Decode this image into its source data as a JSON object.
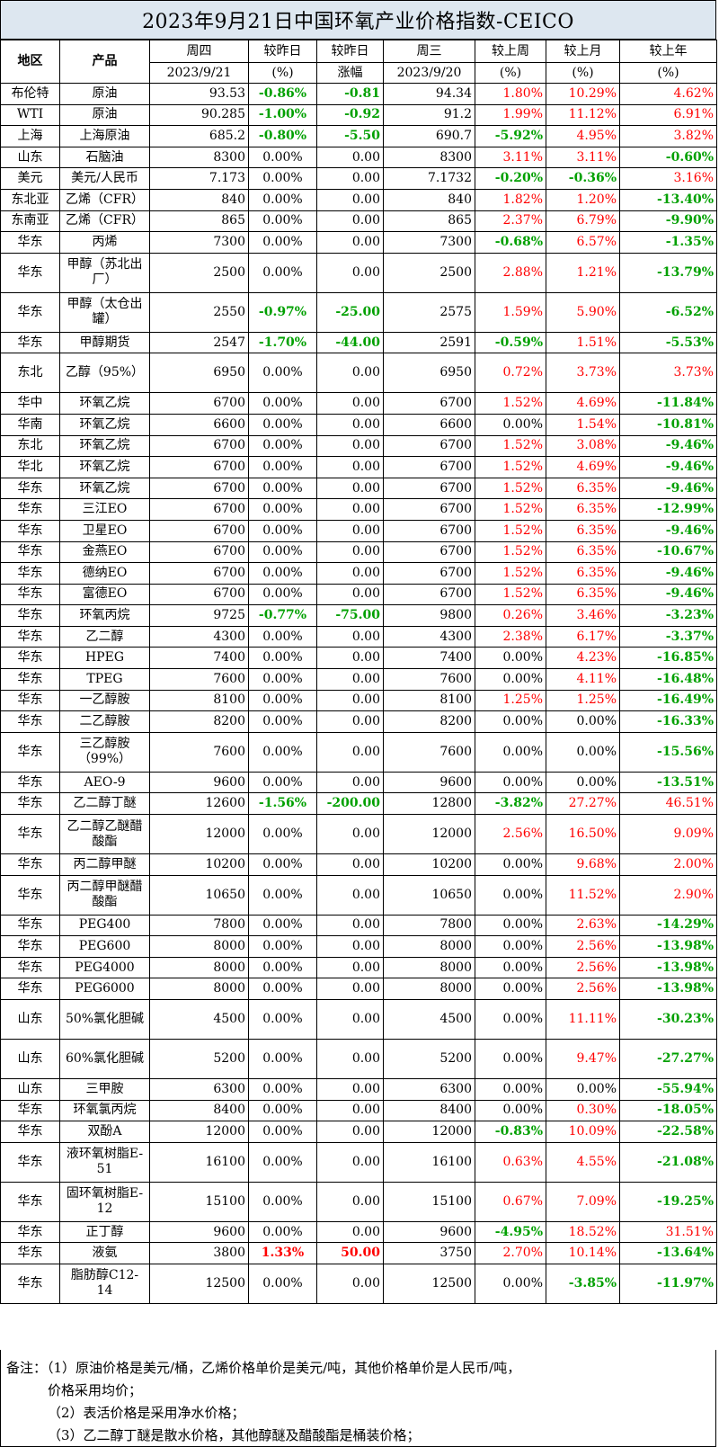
{
  "title": "2023年9月21日中国环氧产业价格指数-CEICO",
  "header": {
    "region": "地区",
    "product": "产品",
    "thu": "周四",
    "thu_date": "2023/9/21",
    "vs_yday_pct_label": "较昨日",
    "vs_yday_pct_unit": "(%)",
    "vs_yday_amt_label": "较昨日",
    "vs_yday_amt_unit": "涨幅",
    "wed": "周三",
    "wed_date": "2023/9/20",
    "vs_week": "较上周",
    "vs_week_unit": "(%)",
    "vs_month": "较上月",
    "vs_month_unit": "(%)",
    "vs_year": "较上年",
    "vs_year_unit": "(%)"
  },
  "rows": [
    {
      "region": "布伦特",
      "product": "原油",
      "thu": "93.53",
      "dpct": "-0.86%",
      "damt": "-0.81",
      "wed": "94.34",
      "wk": "1.80%",
      "mo": "10.29%",
      "yr": "4.62%"
    },
    {
      "region": "WTI",
      "product": "原油",
      "thu": "90.285",
      "dpct": "-1.00%",
      "damt": "-0.92",
      "wed": "91.2",
      "wk": "1.99%",
      "mo": "11.12%",
      "yr": "6.91%"
    },
    {
      "region": "上海",
      "product": "上海原油",
      "thu": "685.2",
      "dpct": "-0.80%",
      "damt": "-5.50",
      "wed": "690.7",
      "wk": "-5.92%",
      "mo": "4.95%",
      "yr": "3.82%"
    },
    {
      "region": "山东",
      "product": "石脑油",
      "thu": "8300",
      "dpct": "0.00%",
      "damt": "0.00",
      "wed": "8300",
      "wk": "3.11%",
      "mo": "3.11%",
      "yr": "-0.60%"
    },
    {
      "region": "美元",
      "product": "美元/人民币",
      "thu": "7.173",
      "dpct": "0.00%",
      "damt": "0.00",
      "wed": "7.1732",
      "wk": "-0.20%",
      "mo": "-0.36%",
      "yr": "3.16%"
    },
    {
      "region": "东北亚",
      "product": "乙烯（CFR）",
      "thu": "840",
      "dpct": "0.00%",
      "damt": "0.00",
      "wed": "840",
      "wk": "1.82%",
      "mo": "1.20%",
      "yr": "-13.40%"
    },
    {
      "region": "东南亚",
      "product": "乙烯（CFR）",
      "thu": "865",
      "dpct": "0.00%",
      "damt": "0.00",
      "wed": "865",
      "wk": "2.37%",
      "mo": "6.79%",
      "yr": "-9.90%"
    },
    {
      "region": "华东",
      "product": "丙烯",
      "thu": "7300",
      "dpct": "0.00%",
      "damt": "0.00",
      "wed": "7300",
      "wk": "-0.68%",
      "mo": "6.57%",
      "yr": "-1.35%"
    },
    {
      "region": "华东",
      "product": "甲醇（苏北出厂）",
      "thu": "2500",
      "dpct": "0.00%",
      "damt": "0.00",
      "wed": "2500",
      "wk": "2.88%",
      "mo": "1.21%",
      "yr": "-13.79%"
    },
    {
      "region": "华东",
      "product": "甲醇（太仓出罐）",
      "thu": "2550",
      "dpct": "-0.97%",
      "damt": "-25.00",
      "wed": "2575",
      "wk": "1.59%",
      "mo": "5.90%",
      "yr": "-6.52%"
    },
    {
      "region": "华东",
      "product": "甲醇期货",
      "thu": "2547",
      "dpct": "-1.70%",
      "damt": "-44.00",
      "wed": "2591",
      "wk": "-0.59%",
      "mo": "1.51%",
      "yr": "-5.53%"
    },
    {
      "region": "东北",
      "product": "乙醇（95%）",
      "thu": "6950",
      "dpct": "0.00%",
      "damt": "0.00",
      "wed": "6950",
      "wk": "0.72%",
      "mo": "3.73%",
      "yr": "3.73%"
    },
    {
      "region": "华中",
      "product": "环氧乙烷",
      "thu": "6700",
      "dpct": "0.00%",
      "damt": "0.00",
      "wed": "6700",
      "wk": "1.52%",
      "mo": "4.69%",
      "yr": "-11.84%"
    },
    {
      "region": "华南",
      "product": "环氧乙烷",
      "thu": "6600",
      "dpct": "0.00%",
      "damt": "0.00",
      "wed": "6600",
      "wk": "0.00%",
      "mo": "1.54%",
      "yr": "-10.81%"
    },
    {
      "region": "东北",
      "product": "环氧乙烷",
      "thu": "6700",
      "dpct": "0.00%",
      "damt": "0.00",
      "wed": "6700",
      "wk": "1.52%",
      "mo": "3.08%",
      "yr": "-9.46%"
    },
    {
      "region": "华北",
      "product": "环氧乙烷",
      "thu": "6700",
      "dpct": "0.00%",
      "damt": "0.00",
      "wed": "6700",
      "wk": "1.52%",
      "mo": "4.69%",
      "yr": "-9.46%"
    },
    {
      "region": "华东",
      "product": "环氧乙烷",
      "thu": "6700",
      "dpct": "0.00%",
      "damt": "0.00",
      "wed": "6700",
      "wk": "1.52%",
      "mo": "6.35%",
      "yr": "-9.46%"
    },
    {
      "region": "华东",
      "product": "三江EO",
      "thu": "6700",
      "dpct": "0.00%",
      "damt": "0.00",
      "wed": "6700",
      "wk": "1.52%",
      "mo": "6.35%",
      "yr": "-12.99%"
    },
    {
      "region": "华东",
      "product": "卫星EO",
      "thu": "6700",
      "dpct": "0.00%",
      "damt": "0.00",
      "wed": "6700",
      "wk": "1.52%",
      "mo": "6.35%",
      "yr": "-9.46%"
    },
    {
      "region": "华东",
      "product": "金燕EO",
      "thu": "6700",
      "dpct": "0.00%",
      "damt": "0.00",
      "wed": "6700",
      "wk": "1.52%",
      "mo": "6.35%",
      "yr": "-10.67%"
    },
    {
      "region": "华东",
      "product": "德纳EO",
      "thu": "6700",
      "dpct": "0.00%",
      "damt": "0.00",
      "wed": "6700",
      "wk": "1.52%",
      "mo": "6.35%",
      "yr": "-9.46%"
    },
    {
      "region": "华东",
      "product": "富德EO",
      "thu": "6700",
      "dpct": "0.00%",
      "damt": "0.00",
      "wed": "6700",
      "wk": "1.52%",
      "mo": "6.35%",
      "yr": "-9.46%"
    },
    {
      "region": "华东",
      "product": "环氧丙烷",
      "thu": "9725",
      "dpct": "-0.77%",
      "damt": "-75.00",
      "wed": "9800",
      "wk": "0.26%",
      "mo": "3.46%",
      "yr": "-3.23%"
    },
    {
      "region": "华东",
      "product": "乙二醇",
      "thu": "4300",
      "dpct": "0.00%",
      "damt": "0.00",
      "wed": "4300",
      "wk": "2.38%",
      "mo": "6.17%",
      "yr": "-3.37%"
    },
    {
      "region": "华东",
      "product": "HPEG",
      "thu": "7400",
      "dpct": "0.00%",
      "damt": "0.00",
      "wed": "7400",
      "wk": "0.00%",
      "mo": "4.23%",
      "yr": "-16.85%"
    },
    {
      "region": "华东",
      "product": "TPEG",
      "thu": "7600",
      "dpct": "0.00%",
      "damt": "0.00",
      "wed": "7600",
      "wk": "0.00%",
      "mo": "4.11%",
      "yr": "-16.48%"
    },
    {
      "region": "华东",
      "product": "一乙醇胺",
      "thu": "8100",
      "dpct": "0.00%",
      "damt": "0.00",
      "wed": "8100",
      "wk": "1.25%",
      "mo": "1.25%",
      "yr": "-16.49%"
    },
    {
      "region": "华东",
      "product": "二乙醇胺",
      "thu": "8200",
      "dpct": "0.00%",
      "damt": "0.00",
      "wed": "8200",
      "wk": "0.00%",
      "mo": "0.00%",
      "yr": "-16.33%"
    },
    {
      "region": "华东",
      "product": "三乙醇胺（99%）",
      "thu": "7600",
      "dpct": "0.00%",
      "damt": "0.00",
      "wed": "7600",
      "wk": "0.00%",
      "mo": "0.00%",
      "yr": "-15.56%"
    },
    {
      "region": "华东",
      "product": "AEO-9",
      "thu": "9600",
      "dpct": "0.00%",
      "damt": "0.00",
      "wed": "9600",
      "wk": "0.00%",
      "mo": "0.00%",
      "yr": "-13.51%"
    },
    {
      "region": "华东",
      "product": "乙二醇丁醚",
      "thu": "12600",
      "dpct": "-1.56%",
      "damt": "-200.00",
      "wed": "12800",
      "wk": "-3.82%",
      "mo": "27.27%",
      "yr": "46.51%"
    },
    {
      "region": "华东",
      "product": "乙二醇乙醚醋酸酯",
      "thu": "12000",
      "dpct": "0.00%",
      "damt": "0.00",
      "wed": "12000",
      "wk": "2.56%",
      "mo": "16.50%",
      "yr": "9.09%"
    },
    {
      "region": "华东",
      "product": "丙二醇甲醚",
      "thu": "10200",
      "dpct": "0.00%",
      "damt": "0.00",
      "wed": "10200",
      "wk": "0.00%",
      "mo": "9.68%",
      "yr": "2.00%"
    },
    {
      "region": "华东",
      "product": "丙二醇甲醚醋酸酯",
      "thu": "10650",
      "dpct": "0.00%",
      "damt": "0.00",
      "wed": "10650",
      "wk": "0.00%",
      "mo": "11.52%",
      "yr": "2.90%"
    },
    {
      "region": "华东",
      "product": "PEG400",
      "thu": "7800",
      "dpct": "0.00%",
      "damt": "0.00",
      "wed": "7800",
      "wk": "0.00%",
      "mo": "2.63%",
      "yr": "-14.29%"
    },
    {
      "region": "华东",
      "product": "PEG600",
      "thu": "8000",
      "dpct": "0.00%",
      "damt": "0.00",
      "wed": "8000",
      "wk": "0.00%",
      "mo": "2.56%",
      "yr": "-13.98%"
    },
    {
      "region": "华东",
      "product": "PEG4000",
      "thu": "8000",
      "dpct": "0.00%",
      "damt": "0.00",
      "wed": "8000",
      "wk": "0.00%",
      "mo": "2.56%",
      "yr": "-13.98%"
    },
    {
      "region": "华东",
      "product": "PEG6000",
      "thu": "8000",
      "dpct": "0.00%",
      "damt": "0.00",
      "wed": "8000",
      "wk": "0.00%",
      "mo": "2.56%",
      "yr": "-13.98%"
    },
    {
      "region": "山东",
      "product": "50%氯化胆碱",
      "thu": "4500",
      "dpct": "0.00%",
      "damt": "0.00",
      "wed": "4500",
      "wk": "0.00%",
      "mo": "11.11%",
      "yr": "-30.23%"
    },
    {
      "region": "山东",
      "product": "60%氯化胆碱",
      "thu": "5200",
      "dpct": "0.00%",
      "damt": "0.00",
      "wed": "5200",
      "wk": "0.00%",
      "mo": "9.47%",
      "yr": "-27.27%"
    },
    {
      "region": "山东",
      "product": "三甲胺",
      "thu": "6300",
      "dpct": "0.00%",
      "damt": "0.00",
      "wed": "6300",
      "wk": "0.00%",
      "mo": "0.00%",
      "yr": "-55.94%"
    },
    {
      "region": "华东",
      "product": "环氧氯丙烷",
      "thu": "8400",
      "dpct": "0.00%",
      "damt": "0.00",
      "wed": "8400",
      "wk": "0.00%",
      "mo": "0.30%",
      "yr": "-18.05%"
    },
    {
      "region": "华东",
      "product": "双酚A",
      "thu": "12000",
      "dpct": "0.00%",
      "damt": "0.00",
      "wed": "12000",
      "wk": "-0.83%",
      "mo": "10.09%",
      "yr": "-22.58%"
    },
    {
      "region": "华东",
      "product": "液环氧树脂E-51",
      "thu": "16100",
      "dpct": "0.00%",
      "damt": "0.00",
      "wed": "16100",
      "wk": "0.63%",
      "mo": "4.55%",
      "yr": "-21.08%"
    },
    {
      "region": "华东",
      "product": "固环氧树脂E-12",
      "thu": "15100",
      "dpct": "0.00%",
      "damt": "0.00",
      "wed": "15100",
      "wk": "0.67%",
      "mo": "7.09%",
      "yr": "-19.25%"
    },
    {
      "region": "华东",
      "product": "正丁醇",
      "thu": "9600",
      "dpct": "0.00%",
      "damt": "0.00",
      "wed": "9600",
      "wk": "-4.95%",
      "mo": "18.52%",
      "yr": "31.51%"
    },
    {
      "region": "华东",
      "product": "液氨",
      "thu": "3800",
      "dpct": "1.33%",
      "damt": "50.00",
      "wed": "3750",
      "wk": "2.70%",
      "mo": "10.14%",
      "yr": "-13.64%"
    },
    {
      "region": "华东",
      "product": "脂肪醇C12-14",
      "thu": "12500",
      "dpct": "0.00%",
      "damt": "0.00",
      "wed": "12500",
      "wk": "0.00%",
      "mo": "-3.85%",
      "yr": "-11.97%"
    }
  ],
  "notes": [
    "备注：（1）原油价格是美元/桶，乙烯价格单价是美元/吨，其他价格单价是人民币/吨，",
    "价格采用均价；",
    "（2）表活价格是采用净水价格；",
    "（3）乙二醇丁醚是散水价格，其他醇醚及醋酸酯是桶装价格；"
  ],
  "colors": {
    "up": "#ff0000",
    "down": "#00a000",
    "title_bg": "#dde7f0"
  }
}
